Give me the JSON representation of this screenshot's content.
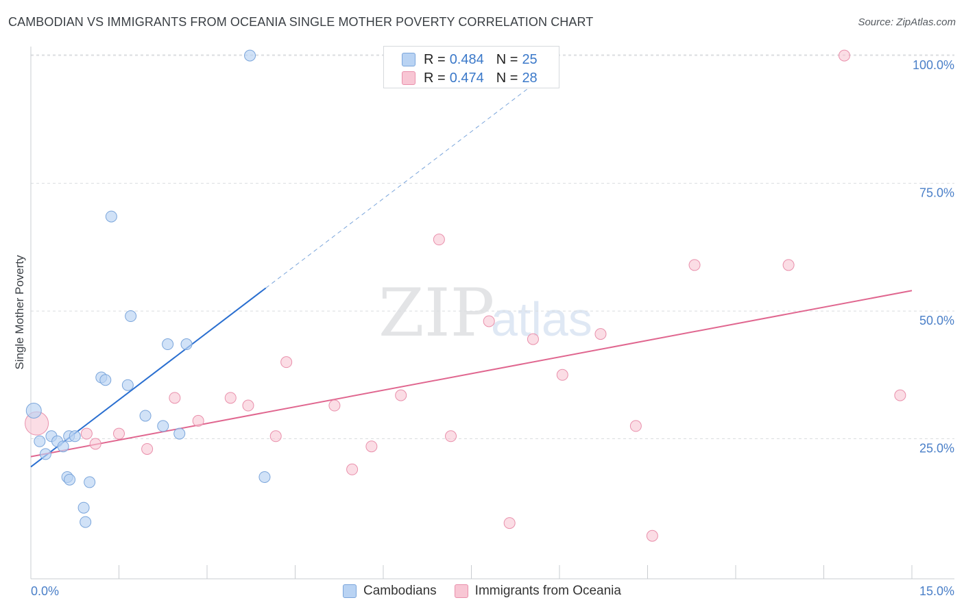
{
  "title": "CAMBODIAN VS IMMIGRANTS FROM OCEANIA SINGLE MOTHER POVERTY CORRELATION CHART",
  "source": "Source: ZipAtlas.com",
  "watermark": {
    "zip": "ZIP",
    "atlas": "atlas"
  },
  "colors": {
    "blue_fill": "#b9d3f3",
    "blue_stroke": "#7aa5db",
    "blue_line": "#2a6fd0",
    "pink_fill": "#f8c6d4",
    "pink_stroke": "#e98fab",
    "pink_line": "#e0668f",
    "grid": "#d9dcdf",
    "axis_label": "#4a7fc8"
  },
  "legend": {
    "rows": [
      {
        "r_label": "R =",
        "r_value": "0.484",
        "n_label": "N =",
        "n_value": "25"
      },
      {
        "r_label": "R =",
        "r_value": "0.474",
        "n_label": "N =",
        "n_value": "28"
      }
    ]
  },
  "bottom_legend": [
    "Cambodians",
    "Immigrants from Oceania"
  ],
  "chart_data": {
    "type": "scatter",
    "title": "CAMBODIAN VS IMMIGRANTS FROM OCEANIA SINGLE MOTHER POVERTY CORRELATION CHART",
    "xlabel": "",
    "ylabel": "Single Mother Poverty",
    "xlim": [
      0,
      15
    ],
    "ylim": [
      0,
      100
    ],
    "x_tick_labels": [
      "0.0%",
      "15.0%"
    ],
    "y_ticks": [
      25,
      50,
      75,
      100
    ],
    "y_tick_labels": [
      "25.0%",
      "50.0%",
      "75.0%",
      "100.0%"
    ],
    "grid": true,
    "series": [
      {
        "name": "Cambodians",
        "points": [
          [
            0.05,
            30.5
          ],
          [
            0.15,
            24.5
          ],
          [
            0.25,
            22.0
          ],
          [
            0.35,
            25.5
          ],
          [
            0.45,
            24.5
          ],
          [
            0.55,
            23.5
          ],
          [
            0.65,
            25.5
          ],
          [
            0.75,
            25.5
          ],
          [
            0.62,
            17.5
          ],
          [
            0.66,
            17.0
          ],
          [
            1.0,
            16.5
          ],
          [
            0.9,
            11.5
          ],
          [
            0.93,
            8.7
          ],
          [
            1.2,
            37.0
          ],
          [
            1.27,
            36.5
          ],
          [
            1.65,
            35.5
          ],
          [
            1.37,
            68.5
          ],
          [
            1.7,
            49.0
          ],
          [
            1.95,
            29.5
          ],
          [
            2.25,
            27.5
          ],
          [
            2.33,
            43.5
          ],
          [
            2.53,
            26.0
          ],
          [
            2.65,
            43.5
          ],
          [
            3.73,
            100.0
          ],
          [
            3.98,
            17.5
          ]
        ],
        "trend": {
          "x0": 0.0,
          "y0": 19.5,
          "x1": 4.0,
          "y1": 54.5,
          "x_dash_end": 9.0
        }
      },
      {
        "name": "Immigrants from Oceania",
        "points": [
          [
            0.1,
            28.0
          ],
          [
            0.95,
            26.0
          ],
          [
            1.1,
            24.0
          ],
          [
            1.5,
            26.0
          ],
          [
            1.98,
            23.0
          ],
          [
            2.45,
            33.0
          ],
          [
            2.85,
            28.5
          ],
          [
            3.4,
            33.0
          ],
          [
            3.7,
            31.5
          ],
          [
            4.17,
            25.5
          ],
          [
            4.35,
            40.0
          ],
          [
            5.17,
            31.5
          ],
          [
            5.47,
            19.0
          ],
          [
            5.8,
            23.5
          ],
          [
            6.3,
            33.5
          ],
          [
            6.95,
            64.0
          ],
          [
            7.15,
            25.5
          ],
          [
            7.8,
            48.0
          ],
          [
            8.15,
            8.5
          ],
          [
            8.55,
            44.5
          ],
          [
            9.05,
            37.5
          ],
          [
            9.7,
            45.5
          ],
          [
            10.3,
            27.5
          ],
          [
            10.58,
            6.0
          ],
          [
            11.3,
            59.0
          ],
          [
            12.9,
            59.0
          ],
          [
            13.85,
            100.0
          ],
          [
            14.8,
            33.5
          ]
        ],
        "trend": {
          "x0": 0.0,
          "y0": 21.5,
          "x1": 15.0,
          "y1": 54.0
        }
      }
    ]
  }
}
